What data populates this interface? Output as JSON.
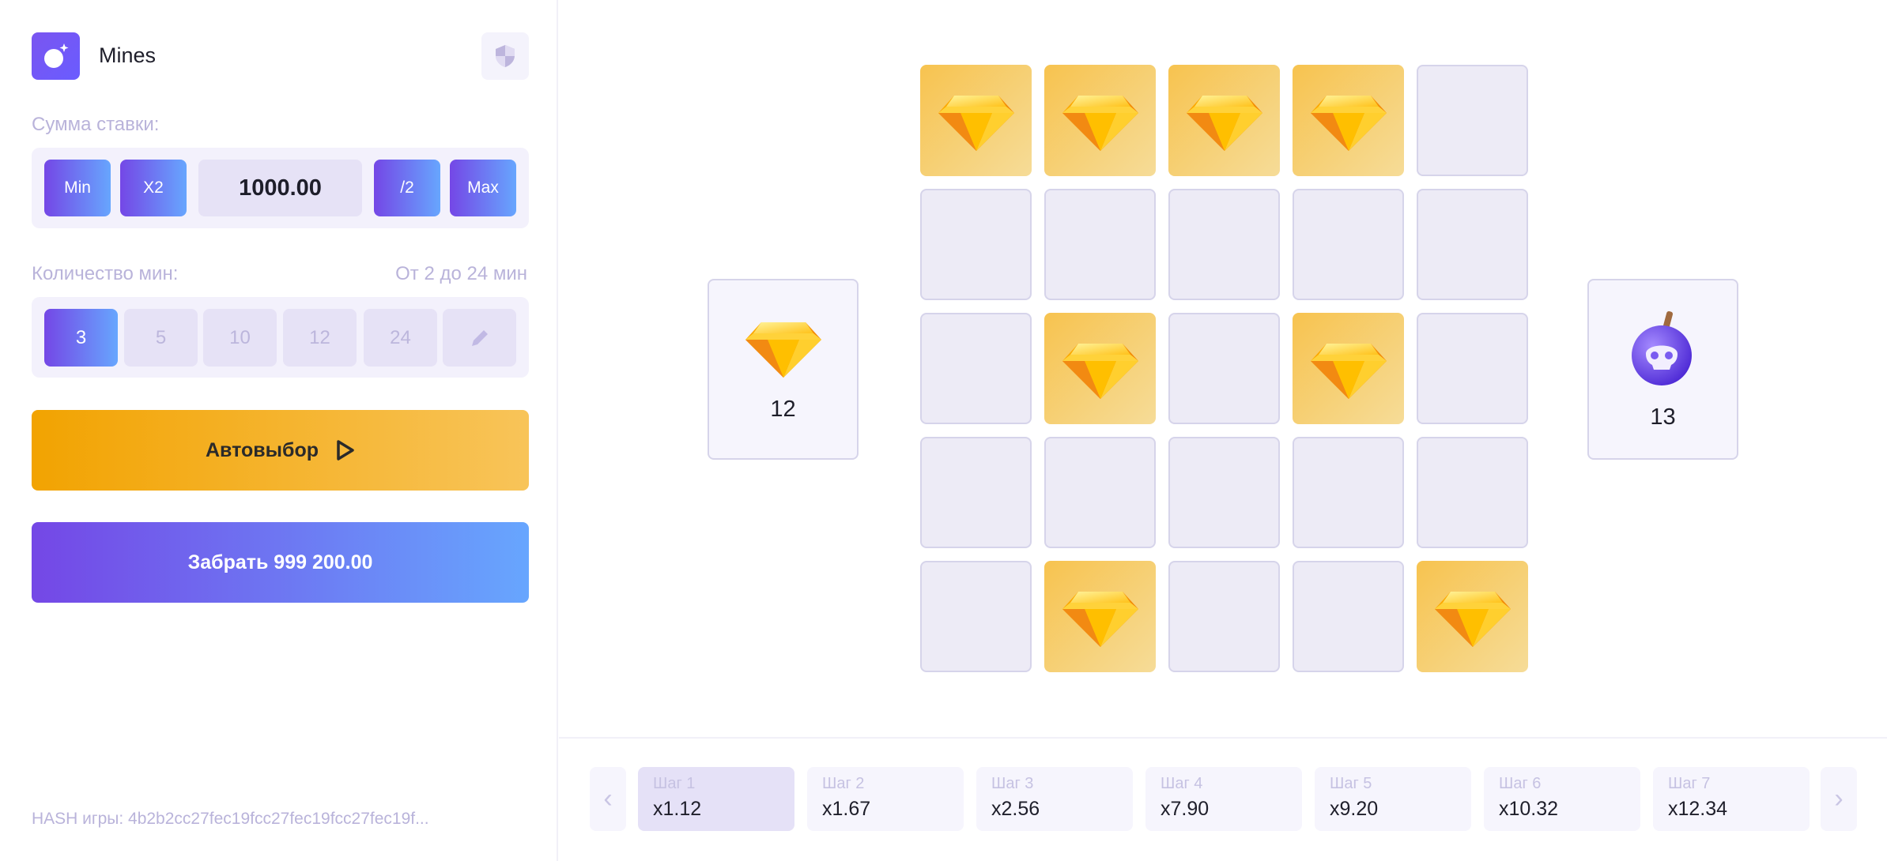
{
  "header": {
    "title": "Mines",
    "logo_icon": "bomb-icon",
    "fair_icon": "shield-icon"
  },
  "bet": {
    "label": "Сумма ставки:",
    "min": "Min",
    "double": "X2",
    "value": "1000.00",
    "half": "/2",
    "max": "Max"
  },
  "mines": {
    "label": "Количество мин:",
    "range": "От 2 до 24 мин",
    "options": [
      "3",
      "5",
      "10",
      "12",
      "24"
    ],
    "selected": "3",
    "edit_icon": "pencil-icon"
  },
  "autoselect": {
    "label": "Автовыбор",
    "icon": "play-icon"
  },
  "collect": {
    "label": "Забрать 999 200.00"
  },
  "hash": "HASH игры: 4b2b2cc27fec19fcc27fec19fcc27fec19f...",
  "grid": [
    [
      "gem",
      "gem",
      "gem",
      "gem",
      "closed"
    ],
    [
      "closed",
      "closed",
      "closed",
      "closed",
      "closed"
    ],
    [
      "closed",
      "gem",
      "closed",
      "gem",
      "closed"
    ],
    [
      "closed",
      "closed",
      "closed",
      "closed",
      "closed"
    ],
    [
      "closed",
      "gem",
      "closed",
      "closed",
      "gem"
    ]
  ],
  "gems_left": {
    "count": "12",
    "icon": "gem-icon"
  },
  "mines_left": {
    "count": "13",
    "icon": "bomb-skull-icon"
  },
  "steps": [
    {
      "label": "Шаг 1",
      "mult": "x1.12",
      "active": true
    },
    {
      "label": "Шаг 2",
      "mult": "x1.67"
    },
    {
      "label": "Шаг 3",
      "mult": "x2.56"
    },
    {
      "label": "Шаг 4",
      "mult": "x7.90"
    },
    {
      "label": "Шаг 5",
      "mult": "x9.20"
    },
    {
      "label": "Шаг 6",
      "mult": "x10.32"
    },
    {
      "label": "Шаг 7",
      "mult": "x12.34"
    }
  ],
  "colors": {
    "accent_start": "#7447e6",
    "accent_end": "#67a6fe",
    "auto_start": "#f2a301",
    "auto_end": "#f8c459"
  }
}
